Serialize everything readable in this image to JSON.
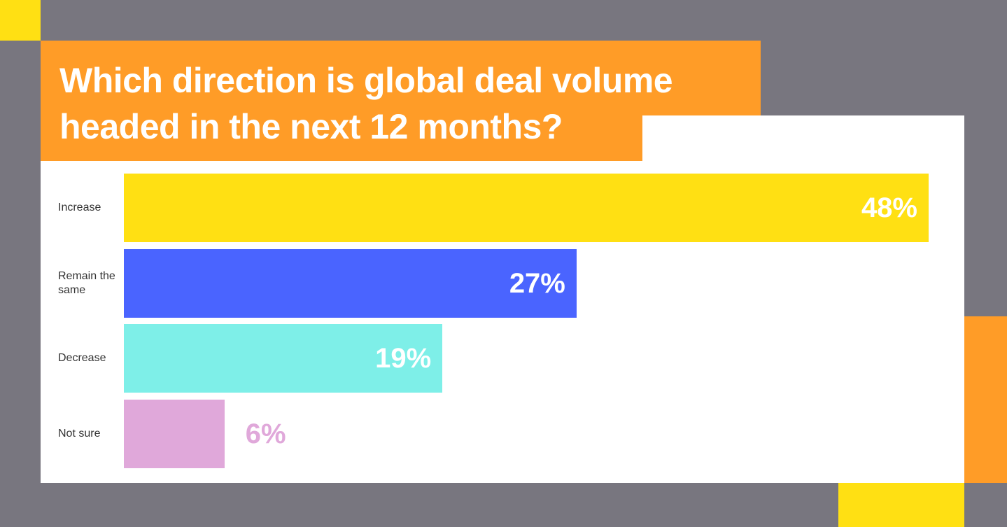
{
  "chart_data": {
    "type": "bar",
    "orientation": "horizontal",
    "title": "Which direction is global deal volume headed in the next 12 months?",
    "categories": [
      "Increase",
      "Remain the same",
      "Decrease",
      "Not sure"
    ],
    "values": [
      48,
      27,
      19,
      6
    ],
    "value_labels": [
      "48%",
      "27%",
      "19%",
      "6%"
    ],
    "colors": [
      "#ffe013",
      "#4a64ff",
      "#7eefe8",
      "#e0a8da"
    ]
  }
}
